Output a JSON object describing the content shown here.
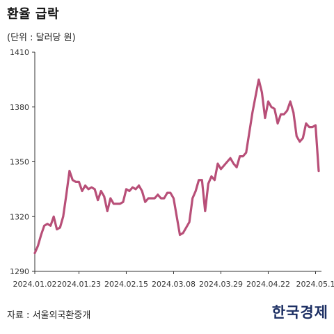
{
  "header": {
    "title": "환율 급락",
    "unit": "(단위 : 달러당 원)"
  },
  "footer": {
    "source": "자료 : 서울외국환중개",
    "logo": "한국경제"
  },
  "colors": {
    "line": "#b84f78",
    "axis": "#333333",
    "grid": "#e6e6e6"
  },
  "chart_data": {
    "type": "line",
    "title": "환율 급락",
    "subtitle": "(단위 : 달러당 원)",
    "xlabel": "",
    "ylabel": "",
    "ylim": [
      1290,
      1410
    ],
    "yticks": [
      1290,
      1320,
      1350,
      1380,
      1410
    ],
    "grid": false,
    "legend": "none",
    "xtick_labels": [
      "2024.01.02",
      "2024.01.23",
      "2024.02.15",
      "2024.03.08",
      "2024.03.29",
      "2024.04.22",
      "2024.05.1"
    ],
    "xtick_index": [
      0,
      14,
      29,
      44,
      59,
      74,
      89
    ],
    "series": [
      {
        "values": [
          1300,
          1304,
          1310,
          1315,
          1316,
          1315,
          1320,
          1313,
          1314,
          1320,
          1332,
          1345,
          1340,
          1339,
          1339,
          1334,
          1337,
          1335,
          1336,
          1335,
          1329,
          1334,
          1331,
          1323,
          1330,
          1327,
          1327,
          1327,
          1328,
          1335,
          1334,
          1336,
          1335,
          1337,
          1334,
          1328,
          1330,
          1330,
          1330,
          1332,
          1330,
          1330,
          1333,
          1333,
          1330,
          1320,
          1310,
          1311,
          1314,
          1317,
          1330,
          1334,
          1340,
          1340,
          1323,
          1338,
          1342,
          1340,
          1349,
          1346,
          1348,
          1350,
          1352,
          1349,
          1347,
          1353,
          1353,
          1355,
          1366,
          1377,
          1386,
          1395,
          1388,
          1374,
          1383,
          1380,
          1379,
          1371,
          1376,
          1376,
          1378,
          1383,
          1377,
          1364,
          1361,
          1363,
          1371,
          1369,
          1369,
          1370,
          1345
        ]
      }
    ]
  }
}
